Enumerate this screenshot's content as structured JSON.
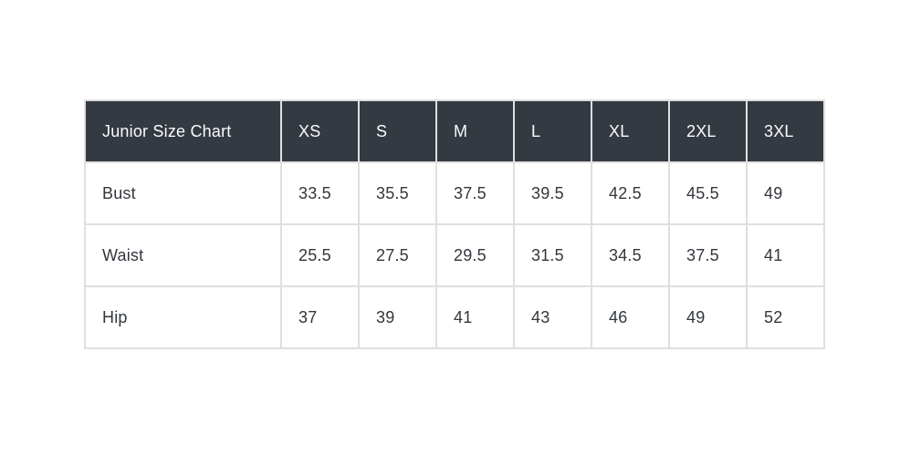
{
  "table": {
    "title": "Junior Size Chart",
    "header": [
      "Junior Size Chart",
      "XS",
      "S",
      "M",
      "L",
      "XL",
      "2XL",
      "3XL"
    ],
    "rows": [
      {
        "label": "Bust",
        "values": [
          "33.5",
          "35.5",
          "37.5",
          "39.5",
          "42.5",
          "45.5",
          "49"
        ]
      },
      {
        "label": "Waist",
        "values": [
          "25.5",
          "27.5",
          "29.5",
          "31.5",
          "34.5",
          "37.5",
          "41"
        ]
      },
      {
        "label": "Hip",
        "values": [
          "37",
          "39",
          "41",
          "43",
          "46",
          "49",
          "52"
        ]
      }
    ],
    "colors": {
      "header_bg": "#343a42",
      "header_text": "#fbfbfb",
      "body_text": "#32373c",
      "border": "#dfdfdf",
      "row_bg": "#ffffff"
    }
  },
  "chart_data": {
    "type": "table",
    "title": "Junior Size Chart",
    "categories": [
      "XS",
      "S",
      "M",
      "L",
      "XL",
      "2XL",
      "3XL"
    ],
    "series": [
      {
        "name": "Bust",
        "values": [
          33.5,
          35.5,
          37.5,
          39.5,
          42.5,
          45.5,
          49
        ]
      },
      {
        "name": "Waist",
        "values": [
          25.5,
          27.5,
          29.5,
          31.5,
          34.5,
          37.5,
          41
        ]
      },
      {
        "name": "Hip",
        "values": [
          37,
          39,
          41,
          43,
          46,
          49,
          52
        ]
      }
    ]
  }
}
